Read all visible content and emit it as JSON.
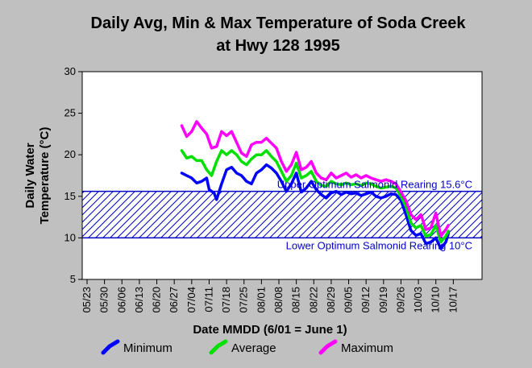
{
  "chart_data": {
    "type": "line",
    "title_line1": "Daily Avg, Min & Max Temperature of Soda Creek",
    "title_line2": "at Hwy 128 1995",
    "xlabel": "Date MMDD (6/01 = June 1)",
    "ylabel_line1": "Daily Water",
    "ylabel_line2": "Temperature (°C)",
    "ylim": [
      5,
      30
    ],
    "yticks": [
      5,
      10,
      15,
      20,
      25,
      30
    ],
    "xlim": [
      0,
      154
    ],
    "xticks": [
      {
        "label": "05/23",
        "day": 0
      },
      {
        "label": "05/30",
        "day": 7
      },
      {
        "label": "06/06",
        "day": 14
      },
      {
        "label": "06/13",
        "day": 21
      },
      {
        "label": "06/20",
        "day": 28
      },
      {
        "label": "06/27",
        "day": 35
      },
      {
        "label": "07/04",
        "day": 42
      },
      {
        "label": "07/11",
        "day": 49
      },
      {
        "label": "07/18",
        "day": 56
      },
      {
        "label": "07/25",
        "day": 63
      },
      {
        "label": "08/01",
        "day": 70
      },
      {
        "label": "08/08",
        "day": 77
      },
      {
        "label": "08/15",
        "day": 84
      },
      {
        "label": "08/22",
        "day": 91
      },
      {
        "label": "08/29",
        "day": 98
      },
      {
        "label": "09/05",
        "day": 105
      },
      {
        "label": "09/12",
        "day": 112
      },
      {
        "label": "09/19",
        "day": 119
      },
      {
        "label": "09/26",
        "day": 126
      },
      {
        "label": "10/03",
        "day": 133
      },
      {
        "label": "10/10",
        "day": 140
      },
      {
        "label": "10/17",
        "day": 147
      }
    ],
    "grid": false,
    "legend_position": "bottom",
    "band": {
      "low": 10,
      "high": 15.6,
      "color": "#0000c8"
    },
    "annotations": {
      "upper": "Upper Optimum Salmonid Rearing 15.6°C",
      "lower": "Lower Optimum Salmonid Rearing 10°C"
    },
    "series": [
      {
        "name": "Minimum",
        "color": "#0000ff",
        "points": [
          [
            38,
            17.8
          ],
          [
            40,
            17.5
          ],
          [
            42,
            17.2
          ],
          [
            44,
            16.6
          ],
          [
            46,
            16.8
          ],
          [
            48,
            17.2
          ],
          [
            49,
            15.8
          ],
          [
            51,
            15.4
          ],
          [
            52,
            14.6
          ],
          [
            54,
            16.5
          ],
          [
            56,
            18.2
          ],
          [
            58,
            18.5
          ],
          [
            60,
            17.8
          ],
          [
            62,
            17.5
          ],
          [
            64,
            16.8
          ],
          [
            66,
            16.5
          ],
          [
            68,
            17.8
          ],
          [
            70,
            18.2
          ],
          [
            72,
            18.8
          ],
          [
            74,
            18.4
          ],
          [
            76,
            17.8
          ],
          [
            78,
            16.8
          ],
          [
            80,
            15.6
          ],
          [
            82,
            16.5
          ],
          [
            84,
            17.8
          ],
          [
            86,
            15.5
          ],
          [
            88,
            16.0
          ],
          [
            90,
            16.8
          ],
          [
            92,
            15.8
          ],
          [
            94,
            15.2
          ],
          [
            96,
            14.8
          ],
          [
            98,
            15.4
          ],
          [
            100,
            15.6
          ],
          [
            102,
            15.2
          ],
          [
            104,
            15.5
          ],
          [
            106,
            15.3
          ],
          [
            108,
            15.4
          ],
          [
            110,
            15.1
          ],
          [
            112,
            15.3
          ],
          [
            114,
            15.5
          ],
          [
            116,
            15.0
          ],
          [
            118,
            14.8
          ],
          [
            120,
            15.0
          ],
          [
            122,
            15.3
          ],
          [
            124,
            15.2
          ],
          [
            126,
            14.5
          ],
          [
            128,
            12.8
          ],
          [
            130,
            10.9
          ],
          [
            132,
            10.3
          ],
          [
            134,
            10.5
          ],
          [
            136,
            9.3
          ],
          [
            138,
            9.5
          ],
          [
            140,
            10.0
          ],
          [
            142,
            8.7
          ],
          [
            144,
            9.5
          ],
          [
            145,
            10.5
          ]
        ]
      },
      {
        "name": "Average",
        "color": "#00e000",
        "points": [
          [
            38,
            20.5
          ],
          [
            40,
            19.6
          ],
          [
            42,
            19.8
          ],
          [
            44,
            19.3
          ],
          [
            46,
            19.3
          ],
          [
            48,
            18.2
          ],
          [
            50,
            17.5
          ],
          [
            52,
            19.2
          ],
          [
            54,
            20.5
          ],
          [
            56,
            20.0
          ],
          [
            58,
            20.5
          ],
          [
            60,
            20.0
          ],
          [
            62,
            19.2
          ],
          [
            64,
            18.8
          ],
          [
            66,
            19.5
          ],
          [
            68,
            20.0
          ],
          [
            70,
            20.0
          ],
          [
            72,
            20.5
          ],
          [
            74,
            19.8
          ],
          [
            76,
            19.2
          ],
          [
            78,
            18.0
          ],
          [
            80,
            16.8
          ],
          [
            82,
            17.5
          ],
          [
            84,
            19.0
          ],
          [
            86,
            17.2
          ],
          [
            88,
            17.5
          ],
          [
            90,
            18.0
          ],
          [
            92,
            16.8
          ],
          [
            94,
            16.3
          ],
          [
            96,
            16.2
          ],
          [
            98,
            16.8
          ],
          [
            100,
            16.5
          ],
          [
            102,
            16.4
          ],
          [
            104,
            16.6
          ],
          [
            106,
            16.4
          ],
          [
            108,
            16.5
          ],
          [
            110,
            16.3
          ],
          [
            112,
            16.6
          ],
          [
            114,
            16.5
          ],
          [
            116,
            16.2
          ],
          [
            118,
            16.0
          ],
          [
            120,
            16.1
          ],
          [
            122,
            16.2
          ],
          [
            124,
            16.0
          ],
          [
            126,
            15.0
          ],
          [
            128,
            13.8
          ],
          [
            130,
            11.8
          ],
          [
            132,
            11.2
          ],
          [
            134,
            11.5
          ],
          [
            136,
            10.2
          ],
          [
            138,
            10.4
          ],
          [
            140,
            11.5
          ],
          [
            142,
            9.5
          ],
          [
            144,
            10.2
          ],
          [
            145,
            10.8
          ]
        ]
      },
      {
        "name": "Maximum",
        "color": "#ff00ff",
        "points": [
          [
            38,
            23.5
          ],
          [
            40,
            22.2
          ],
          [
            42,
            22.8
          ],
          [
            44,
            24.0
          ],
          [
            46,
            23.2
          ],
          [
            48,
            22.5
          ],
          [
            50,
            20.8
          ],
          [
            52,
            21.0
          ],
          [
            54,
            22.8
          ],
          [
            56,
            22.3
          ],
          [
            58,
            22.8
          ],
          [
            60,
            21.5
          ],
          [
            62,
            20.2
          ],
          [
            64,
            19.8
          ],
          [
            66,
            21.2
          ],
          [
            68,
            21.5
          ],
          [
            70,
            21.5
          ],
          [
            72,
            22.0
          ],
          [
            74,
            21.4
          ],
          [
            76,
            20.8
          ],
          [
            78,
            19.2
          ],
          [
            80,
            18.0
          ],
          [
            82,
            18.8
          ],
          [
            84,
            20.3
          ],
          [
            86,
            18.2
          ],
          [
            88,
            18.5
          ],
          [
            90,
            19.2
          ],
          [
            92,
            17.8
          ],
          [
            94,
            17.2
          ],
          [
            96,
            17.0
          ],
          [
            98,
            17.8
          ],
          [
            100,
            17.2
          ],
          [
            102,
            17.5
          ],
          [
            104,
            17.8
          ],
          [
            106,
            17.3
          ],
          [
            108,
            17.6
          ],
          [
            110,
            17.2
          ],
          [
            112,
            17.5
          ],
          [
            114,
            17.2
          ],
          [
            116,
            17.0
          ],
          [
            118,
            16.8
          ],
          [
            120,
            17.0
          ],
          [
            122,
            16.8
          ],
          [
            124,
            16.5
          ],
          [
            126,
            15.5
          ],
          [
            128,
            14.5
          ],
          [
            130,
            12.8
          ],
          [
            132,
            12.2
          ],
          [
            134,
            12.8
          ],
          [
            136,
            11.0
          ],
          [
            138,
            11.2
          ],
          [
            140,
            13.0
          ],
          [
            142,
            10.2
          ],
          [
            144,
            11.0
          ],
          [
            145,
            11.5
          ]
        ]
      }
    ]
  }
}
